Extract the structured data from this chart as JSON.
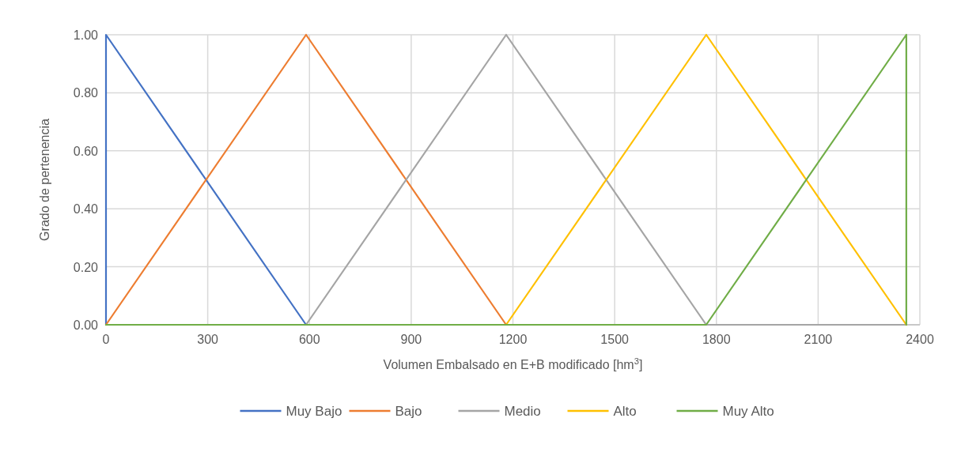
{
  "chart_data": {
    "type": "line",
    "xlabel": "Volumen Embalsado en E+B modificado [hm$^{3}$]",
    "ylabel": "Grado de pertenencia",
    "xlim": [
      0,
      2400
    ],
    "xticks": [
      0,
      300,
      600,
      900,
      1200,
      1500,
      1800,
      2100,
      2400
    ],
    "ylim": [
      0,
      1
    ],
    "yticks": [
      {
        "value": 0,
        "label": "0.00"
      },
      {
        "value": 0.2,
        "label": "0.20"
      },
      {
        "value": 0.4,
        "label": "0.40"
      },
      {
        "value": 0.6,
        "label": "0.60"
      },
      {
        "value": 0.8,
        "label": "0.80"
      },
      {
        "value": 1,
        "label": "1.00"
      }
    ],
    "grid": true,
    "legend": "bottom",
    "marker": "none",
    "line_style": "solid",
    "series": [
      {
        "name": "Muy Bajo",
        "color": "#4472c4",
        "x": [
          0,
          0,
          590,
          2360
        ],
        "values": [
          0,
          1,
          0,
          0
        ]
      },
      {
        "name": "Bajo",
        "color": "#ed7d31",
        "x": [
          0,
          590,
          1180,
          2360
        ],
        "values": [
          0,
          1,
          0,
          0
        ]
      },
      {
        "name": "Medio",
        "color": "#a5a5a5",
        "x": [
          0,
          590,
          1180,
          1770,
          2360
        ],
        "values": [
          0,
          0,
          1,
          0,
          0
        ]
      },
      {
        "name": "Alto",
        "color": "#ffc000",
        "x": [
          0,
          1180,
          1770,
          2360
        ],
        "values": [
          0,
          0,
          1,
          0
        ]
      },
      {
        "name": "Muy Alto",
        "color": "#70ad47",
        "x": [
          0,
          1770,
          2360,
          2360
        ],
        "values": [
          0,
          0,
          1,
          0
        ]
      }
    ]
  }
}
